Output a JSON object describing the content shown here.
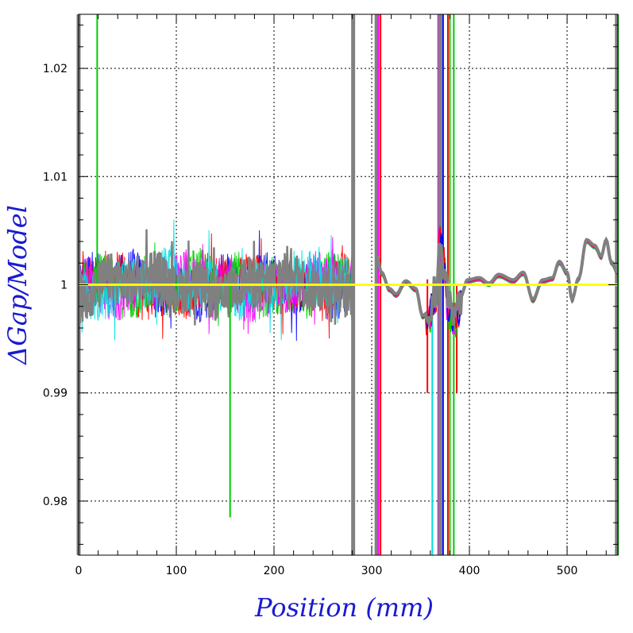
{
  "chart_data": {
    "type": "line",
    "xlabel": "Position (mm)",
    "ylabel": "ΔGap/Model",
    "xlim": [
      0,
      552
    ],
    "ylim": [
      0.975,
      1.025
    ],
    "x_ticks": [
      0,
      100,
      200,
      300,
      400,
      500
    ],
    "x_tick_labels": [
      "0",
      "100",
      "200",
      "300",
      "400",
      "500"
    ],
    "y_ticks": [
      0.98,
      0.99,
      1,
      1.01,
      1.02
    ],
    "y_tick_labels": [
      "0.98",
      "0.99",
      "1",
      "1.01",
      "1.02"
    ],
    "grid": true,
    "reference_line": {
      "y": 1.0,
      "color": "#ffff00"
    },
    "colors": {
      "axis": "#000000",
      "title": "#1a1ad0",
      "traces": [
        "#0000ff",
        "#ff0000",
        "#00cc00",
        "#ff00ff",
        "#00e0e0",
        "#808080"
      ]
    },
    "features": {
      "noisy_region_x": [
        0,
        281
      ],
      "noisy_amplitude": 0.003,
      "smooth_region_x": [
        305,
        552
      ],
      "smooth_curve": [
        [
          305,
          1.0025
        ],
        [
          310,
          1.001
        ],
        [
          318,
          0.9995
        ],
        [
          325,
          0.999
        ],
        [
          335,
          1.0002
        ],
        [
          345,
          0.9995
        ],
        [
          352,
          0.997
        ],
        [
          360,
          0.9975
        ],
        [
          366,
          0.9995
        ],
        [
          370,
          1.004
        ],
        [
          374,
          1.0015
        ],
        [
          378,
          0.998
        ],
        [
          385,
          0.9965
        ],
        [
          392,
          0.999
        ],
        [
          398,
          1.0003
        ],
        [
          410,
          1.0005
        ],
        [
          420,
          1.0
        ],
        [
          430,
          1.0008
        ],
        [
          445,
          1.0003
        ],
        [
          455,
          1.001
        ],
        [
          465,
          0.9985
        ],
        [
          475,
          1.0003
        ],
        [
          485,
          1.0005
        ],
        [
          492,
          1.002
        ],
        [
          500,
          1.001
        ],
        [
          505,
          0.9985
        ],
        [
          512,
          1.0005
        ],
        [
          520,
          1.004
        ],
        [
          528,
          1.0035
        ],
        [
          535,
          1.0025
        ],
        [
          540,
          1.004
        ],
        [
          545,
          1.002
        ],
        [
          552,
          1.001
        ]
      ],
      "vertical_spikes": [
        {
          "x": 0,
          "y": [
            0.975,
            1.025
          ],
          "color": "#808080"
        },
        {
          "x": 19,
          "y": [
            1.0,
            1.025
          ],
          "color": "#00cc00"
        },
        {
          "x": 155,
          "y": [
            0.9785,
            1.0
          ],
          "color": "#00cc00"
        },
        {
          "x": 281,
          "y": [
            0.975,
            1.025
          ],
          "color": "#808080"
        },
        {
          "x": 305,
          "y": [
            0.975,
            1.025
          ],
          "color": "#808080"
        },
        {
          "x": 307,
          "y": [
            0.975,
            1.025
          ],
          "color": "#ff00ff"
        },
        {
          "x": 309,
          "y": [
            0.975,
            1.025
          ],
          "color": "#ff0000"
        },
        {
          "x": 357,
          "y": [
            0.99,
            1.0005
          ],
          "color": "#ff0000"
        },
        {
          "x": 362,
          "y": [
            0.975,
            0.998
          ],
          "color": "#00e0e0"
        },
        {
          "x": 368,
          "y": [
            0.975,
            1.025
          ],
          "color": "#ff00ff"
        },
        {
          "x": 370,
          "y": [
            0.975,
            1.025
          ],
          "color": "#808080"
        },
        {
          "x": 373,
          "y": [
            0.975,
            1.025
          ],
          "color": "#0000ff"
        },
        {
          "x": 378,
          "y": [
            0.975,
            1.025
          ],
          "color": "#ff0000"
        },
        {
          "x": 380,
          "y": [
            0.975,
            1.025
          ],
          "color": "#00cc00"
        },
        {
          "x": 384,
          "y": [
            0.975,
            1.025
          ],
          "color": "#00cc00"
        },
        {
          "x": 387,
          "y": [
            0.99,
            1.0
          ],
          "color": "#ff0000"
        },
        {
          "x": 551,
          "y": [
            0.975,
            1.025
          ],
          "color": "#808080"
        },
        {
          "x": 552,
          "y": [
            0.975,
            1.025
          ],
          "color": "#00cc00"
        }
      ]
    }
  }
}
